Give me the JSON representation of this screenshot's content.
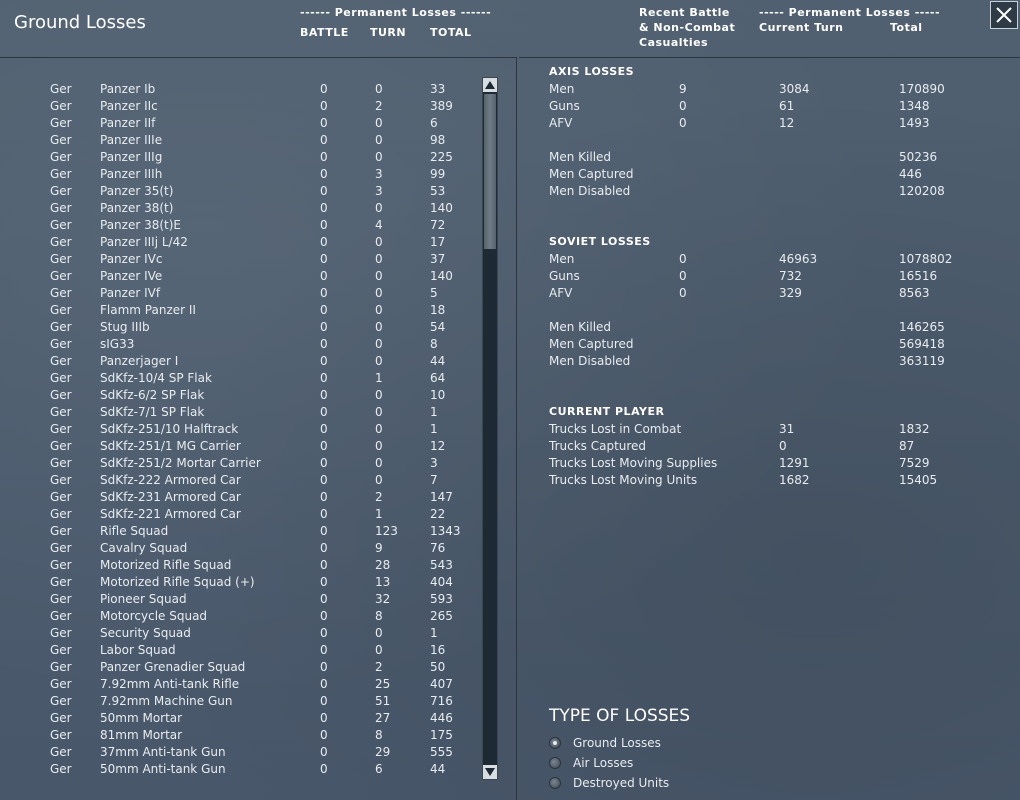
{
  "window": {
    "title": "Ground Losses"
  },
  "left_header": {
    "group_label": "------ Permanent Losses ------",
    "battle": "BATTLE",
    "turn": "TURN",
    "total": "TOTAL"
  },
  "right_header": {
    "recent_line1": "Recent Battle",
    "recent_line2": "& Non-Combat",
    "recent_line3": "Casualties",
    "group_label": "----- Permanent Losses -----",
    "current_turn": "Current Turn",
    "total": "Total"
  },
  "units": [
    {
      "nat": "Ger",
      "name": "Panzer Ib",
      "battle": "0",
      "turn": "0",
      "total": "33"
    },
    {
      "nat": "Ger",
      "name": "Panzer IIc",
      "battle": "0",
      "turn": "2",
      "total": "389"
    },
    {
      "nat": "Ger",
      "name": "Panzer IIf",
      "battle": "0",
      "turn": "0",
      "total": "6"
    },
    {
      "nat": "Ger",
      "name": "Panzer IIIe",
      "battle": "0",
      "turn": "0",
      "total": "98"
    },
    {
      "nat": "Ger",
      "name": "Panzer IIIg",
      "battle": "0",
      "turn": "0",
      "total": "225"
    },
    {
      "nat": "Ger",
      "name": "Panzer IIIh",
      "battle": "0",
      "turn": "3",
      "total": "99"
    },
    {
      "nat": "Ger",
      "name": "Panzer 35(t)",
      "battle": "0",
      "turn": "3",
      "total": "53"
    },
    {
      "nat": "Ger",
      "name": "Panzer 38(t)",
      "battle": "0",
      "turn": "0",
      "total": "140"
    },
    {
      "nat": "Ger",
      "name": "Panzer 38(t)E",
      "battle": "0",
      "turn": "4",
      "total": "72"
    },
    {
      "nat": "Ger",
      "name": "Panzer IIIj L/42",
      "battle": "0",
      "turn": "0",
      "total": "17"
    },
    {
      "nat": "Ger",
      "name": "Panzer IVc",
      "battle": "0",
      "turn": "0",
      "total": "37"
    },
    {
      "nat": "Ger",
      "name": "Panzer IVe",
      "battle": "0",
      "turn": "0",
      "total": "140"
    },
    {
      "nat": "Ger",
      "name": "Panzer IVf",
      "battle": "0",
      "turn": "0",
      "total": "5"
    },
    {
      "nat": "Ger",
      "name": "Flamm Panzer II",
      "battle": "0",
      "turn": "0",
      "total": "18"
    },
    {
      "nat": "Ger",
      "name": "Stug IIIb",
      "battle": "0",
      "turn": "0",
      "total": "54"
    },
    {
      "nat": "Ger",
      "name": "sIG33",
      "battle": "0",
      "turn": "0",
      "total": "8"
    },
    {
      "nat": "Ger",
      "name": "Panzerjager I",
      "battle": "0",
      "turn": "0",
      "total": "44"
    },
    {
      "nat": "Ger",
      "name": "SdKfz-10/4 SP Flak",
      "battle": "0",
      "turn": "1",
      "total": "64"
    },
    {
      "nat": "Ger",
      "name": "SdKfz-6/2 SP Flak",
      "battle": "0",
      "turn": "0",
      "total": "10"
    },
    {
      "nat": "Ger",
      "name": "SdKfz-7/1 SP Flak",
      "battle": "0",
      "turn": "0",
      "total": "1"
    },
    {
      "nat": "Ger",
      "name": "SdKfz-251/10 Halftrack",
      "battle": "0",
      "turn": "0",
      "total": "1"
    },
    {
      "nat": "Ger",
      "name": "SdKfz-251/1 MG Carrier",
      "battle": "0",
      "turn": "0",
      "total": "12"
    },
    {
      "nat": "Ger",
      "name": "SdKfz-251/2 Mortar Carrier",
      "battle": "0",
      "turn": "0",
      "total": "3"
    },
    {
      "nat": "Ger",
      "name": "SdKfz-222 Armored Car",
      "battle": "0",
      "turn": "0",
      "total": "7"
    },
    {
      "nat": "Ger",
      "name": "SdKfz-231 Armored Car",
      "battle": "0",
      "turn": "2",
      "total": "147"
    },
    {
      "nat": "Ger",
      "name": "SdKfz-221 Armored Car",
      "battle": "0",
      "turn": "1",
      "total": "22"
    },
    {
      "nat": "Ger",
      "name": "Rifle Squad",
      "battle": "0",
      "turn": "123",
      "total": "1343"
    },
    {
      "nat": "Ger",
      "name": "Cavalry Squad",
      "battle": "0",
      "turn": "9",
      "total": "76"
    },
    {
      "nat": "Ger",
      "name": "Motorized Rifle Squad",
      "battle": "0",
      "turn": "28",
      "total": "543"
    },
    {
      "nat": "Ger",
      "name": "Motorized Rifle Squad (+)",
      "battle": "0",
      "turn": "13",
      "total": "404"
    },
    {
      "nat": "Ger",
      "name": "Pioneer Squad",
      "battle": "0",
      "turn": "32",
      "total": "593"
    },
    {
      "nat": "Ger",
      "name": "Motorcycle Squad",
      "battle": "0",
      "turn": "8",
      "total": "265"
    },
    {
      "nat": "Ger",
      "name": "Security Squad",
      "battle": "0",
      "turn": "0",
      "total": "1"
    },
    {
      "nat": "Ger",
      "name": "Labor Squad",
      "battle": "0",
      "turn": "0",
      "total": "16"
    },
    {
      "nat": "Ger",
      "name": "Panzer Grenadier Squad",
      "battle": "0",
      "turn": "2",
      "total": "50"
    },
    {
      "nat": "Ger",
      "name": "7.92mm Anti-tank Rifle",
      "battle": "0",
      "turn": "25",
      "total": "407"
    },
    {
      "nat": "Ger",
      "name": "7.92mm Machine Gun",
      "battle": "0",
      "turn": "51",
      "total": "716"
    },
    {
      "nat": "Ger",
      "name": "50mm Mortar",
      "battle": "0",
      "turn": "27",
      "total": "446"
    },
    {
      "nat": "Ger",
      "name": "81mm Mortar",
      "battle": "0",
      "turn": "8",
      "total": "175"
    },
    {
      "nat": "Ger",
      "name": "37mm Anti-tank Gun",
      "battle": "0",
      "turn": "29",
      "total": "555"
    },
    {
      "nat": "Ger",
      "name": "50mm Anti-tank Gun",
      "battle": "0",
      "turn": "6",
      "total": "44"
    }
  ],
  "axis": {
    "title": "AXIS LOSSES",
    "rows": [
      {
        "label": "Men",
        "recent": "9",
        "turn": "3084",
        "total": "170890"
      },
      {
        "label": "Guns",
        "recent": "0",
        "turn": "61",
        "total": "1348"
      },
      {
        "label": "AFV",
        "recent": "0",
        "turn": "12",
        "total": "1493"
      }
    ],
    "detail": [
      {
        "label": "Men Killed",
        "total": "50236"
      },
      {
        "label": "Men Captured",
        "total": "446"
      },
      {
        "label": "Men Disabled",
        "total": "120208"
      }
    ]
  },
  "soviet": {
    "title": "SOVIET LOSSES",
    "rows": [
      {
        "label": "Men",
        "recent": "0",
        "turn": "46963",
        "total": "1078802"
      },
      {
        "label": "Guns",
        "recent": "0",
        "turn": "732",
        "total": "16516"
      },
      {
        "label": "AFV",
        "recent": "0",
        "turn": "329",
        "total": "8563"
      }
    ],
    "detail": [
      {
        "label": "Men Killed",
        "total": "146265"
      },
      {
        "label": "Men Captured",
        "total": "569418"
      },
      {
        "label": "Men Disabled",
        "total": "363119"
      }
    ]
  },
  "player": {
    "title": "CURRENT PLAYER",
    "rows": [
      {
        "label": "Trucks Lost in Combat",
        "turn": "31",
        "total": "1832"
      },
      {
        "label": "Trucks Captured",
        "turn": "0",
        "total": "87"
      },
      {
        "label": "Trucks Lost Moving Supplies",
        "turn": "1291",
        "total": "7529"
      },
      {
        "label": "Trucks Lost Moving Units",
        "turn": "1682",
        "total": "15405"
      }
    ]
  },
  "loss_types": {
    "title": "TYPE OF LOSSES",
    "options": [
      {
        "label": "Ground Losses",
        "selected": true
      },
      {
        "label": "Air Losses",
        "selected": false
      },
      {
        "label": "Destroyed Units",
        "selected": false
      }
    ]
  },
  "colors": {
    "background": "#4a5866",
    "text": "#e8ecef",
    "scroll_track": "#1e2a33"
  }
}
